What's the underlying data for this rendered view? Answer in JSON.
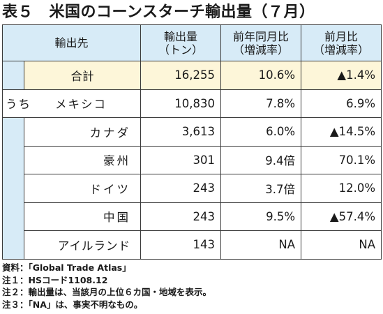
{
  "title": "表５　米国のコーンスターチ輸出量（７月）",
  "headers": {
    "dest": "輸出先",
    "volume_line1": "輸出量",
    "volume_line2": "（トン）",
    "yoy_line1": "前年同月比",
    "yoy_line2": "（増減率）",
    "mom_line1": "前月比",
    "mom_line2": "（増減率）"
  },
  "total": {
    "label": "合計",
    "volume": "16,255",
    "yoy": "10.6%",
    "mom": "▲1.4%"
  },
  "uchi_label": "うち",
  "rows": [
    {
      "label": "メキシコ",
      "volume": "10,830",
      "yoy": "7.8%",
      "mom": "6.9%"
    },
    {
      "label": "カナダ",
      "volume": "3,613",
      "yoy": "6.0%",
      "mom": "▲14.5%"
    },
    {
      "label": "豪州",
      "volume": "301",
      "yoy": "9.4倍",
      "mom": "70.1%"
    },
    {
      "label": "ドイツ",
      "volume": "243",
      "yoy": "3.7倍",
      "mom": "12.0%"
    },
    {
      "label": "中国",
      "volume": "243",
      "yoy": "9.5%",
      "mom": "▲57.4%"
    },
    {
      "label": "アイルランド",
      "volume": "143",
      "yoy": "NA",
      "mom": "NA"
    }
  ],
  "notes": [
    "資料：「Global Trade Atlas」",
    "注１：HSコード1108.12",
    "注２：輸出量は、当該月の上位６カ国・地域を表示。",
    "注３：「NA」は、事実不明なもの。"
  ],
  "colors": {
    "header_bg": "#d7ebf7",
    "total_bg": "#fdf6d9",
    "border": "#3a3a3a"
  }
}
